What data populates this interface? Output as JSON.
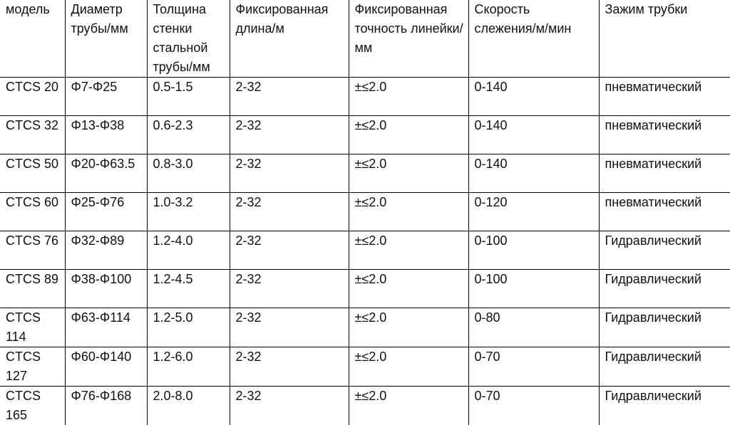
{
  "table": {
    "headers": [
      "модель",
      "Диаметр трубы/мм",
      "Толщина стенки стальной трубы/мм",
      "Фиксированная длина/м",
      "Фиксированная точность линейки/мм",
      "Скорость слежения/м/мин",
      "Зажим трубки"
    ],
    "rows": [
      [
        "CTCS 20",
        "Φ7-Φ25",
        "0.5-1.5",
        "2-32",
        "±≤2.0",
        "0-140",
        "пневматический"
      ],
      [
        "CTCS 32",
        "Φ13-Φ38",
        "0.6-2.3",
        "2-32",
        "±≤2.0",
        "0-140",
        "пневматический"
      ],
      [
        "CTCS 50",
        "Φ20-Φ63.5",
        "0.8-3.0",
        "2-32",
        "±≤2.0",
        "0-140",
        "пневматический"
      ],
      [
        "CTCS 60",
        "Φ25-Φ76",
        "1.0-3.2",
        "2-32",
        "±≤2.0",
        "0-120",
        "пневматический"
      ],
      [
        "CTCS 76",
        "Φ32-Φ89",
        "1.2-4.0",
        "2-32",
        "±≤2.0",
        "0-100",
        "Гидравлический"
      ],
      [
        "CTCS 89",
        "Φ38-Φ100",
        "1.2-4.5",
        "2-32",
        "±≤2.0",
        "0-100",
        "Гидравлический"
      ],
      [
        "CTCS 114",
        "Φ63-Φ114",
        "1.2-5.0",
        "2-32",
        "±≤2.0",
        "0-80",
        "Гидравлический"
      ],
      [
        "CTCS 127",
        "Φ60-Φ140",
        "1.2-6.0",
        "2-32",
        "±≤2.0",
        "0-70",
        "Гидравлический"
      ],
      [
        "CTCS 165",
        "Φ76-Φ168",
        "2.0-8.0",
        "2-32",
        "±≤2.0",
        "0-70",
        "Гидравлический"
      ]
    ]
  }
}
